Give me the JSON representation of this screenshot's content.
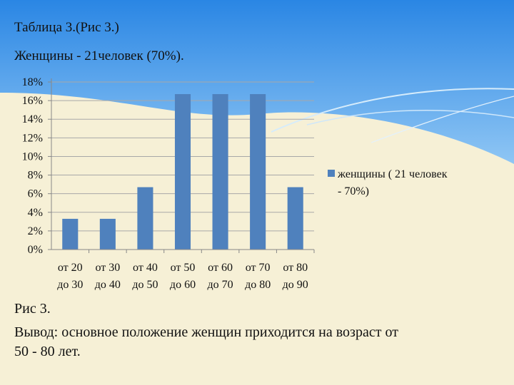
{
  "slide": {
    "title": "Таблица 3.(Рис 3.)",
    "subtitle": "Женщины - 21человек (70%).",
    "caption": "Рис 3.",
    "conclusion_line1": "Вывод: основное положение женщин приходится на возраст от",
    "conclusion_line2": "50 - 80 лет.",
    "colors": {
      "bar": "#4f81bd",
      "sky": "#2f8fe8",
      "background": "#f6f0d6"
    }
  },
  "chart_data": {
    "type": "bar",
    "categories": [
      [
        "от 20",
        "до 30"
      ],
      [
        "от 30",
        "до 40"
      ],
      [
        "от 40",
        "до 50"
      ],
      [
        "от 50",
        "до 60"
      ],
      [
        "от 60",
        "до 70"
      ],
      [
        "от 70",
        "до 80"
      ],
      [
        "от 80",
        "до 90"
      ]
    ],
    "series": [
      {
        "name": "женщины ( 21 человек - 70%)",
        "legend_lines": [
          "женщины ( 21 человек",
          "- 70%)"
        ],
        "values": [
          3.3,
          3.3,
          6.7,
          16.7,
          16.7,
          16.7,
          6.7
        ]
      }
    ],
    "yticks": [
      "0%",
      "2%",
      "4%",
      "6%",
      "8%",
      "10%",
      "12%",
      "14%",
      "16%",
      "18%"
    ],
    "ylim": [
      0,
      18
    ],
    "grid": true,
    "legend": "right"
  }
}
